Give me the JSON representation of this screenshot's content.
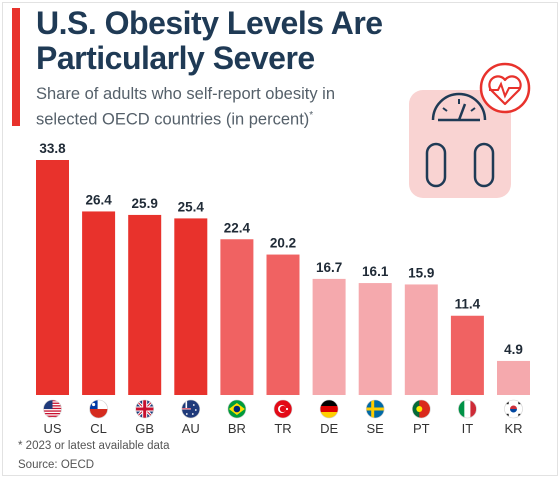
{
  "header": {
    "title": "U.S. Obesity Levels Are Particularly Severe",
    "subtitle": "Share of adults who self-report obesity in selected OECD countries (in percent)",
    "subtitle_mark": "*"
  },
  "footer": {
    "footnote": "* 2023 or latest available data",
    "source": "Source: OECD"
  },
  "illustration": {
    "icon": "scale-with-heart-icon"
  },
  "colors": {
    "title": "#1f3a55",
    "accent": "#e8322c",
    "bar_dark": "#e8322c",
    "bar_mid": "#f06262",
    "bar_light": "#f5a9ad",
    "label": "#1f2a36"
  },
  "chart_data": {
    "type": "bar",
    "categories": [
      "US",
      "CL",
      "GB",
      "AU",
      "BR",
      "TR",
      "DE",
      "SE",
      "PT",
      "IT",
      "KR"
    ],
    "values": [
      33.8,
      26.4,
      25.9,
      25.4,
      22.4,
      20.2,
      16.7,
      16.1,
      15.9,
      11.4,
      4.9
    ],
    "value_labels": [
      "33.8",
      "26.4",
      "25.9",
      "25.4",
      "22.4",
      "20.2",
      "16.7",
      "16.1",
      "15.9",
      "11.4",
      "4.9"
    ],
    "color_groups": [
      "dark",
      "dark",
      "dark",
      "dark",
      "mid",
      "mid",
      "light",
      "light",
      "light",
      "mid",
      "light"
    ],
    "flags": [
      "flag-us-icon",
      "flag-cl-icon",
      "flag-gb-icon",
      "flag-au-icon",
      "flag-br-icon",
      "flag-tr-icon",
      "flag-de-icon",
      "flag-se-icon",
      "flag-pt-icon",
      "flag-it-icon",
      "flag-kr-icon"
    ],
    "ylim": [
      0,
      33.8
    ],
    "grid": false,
    "legend": "none"
  }
}
